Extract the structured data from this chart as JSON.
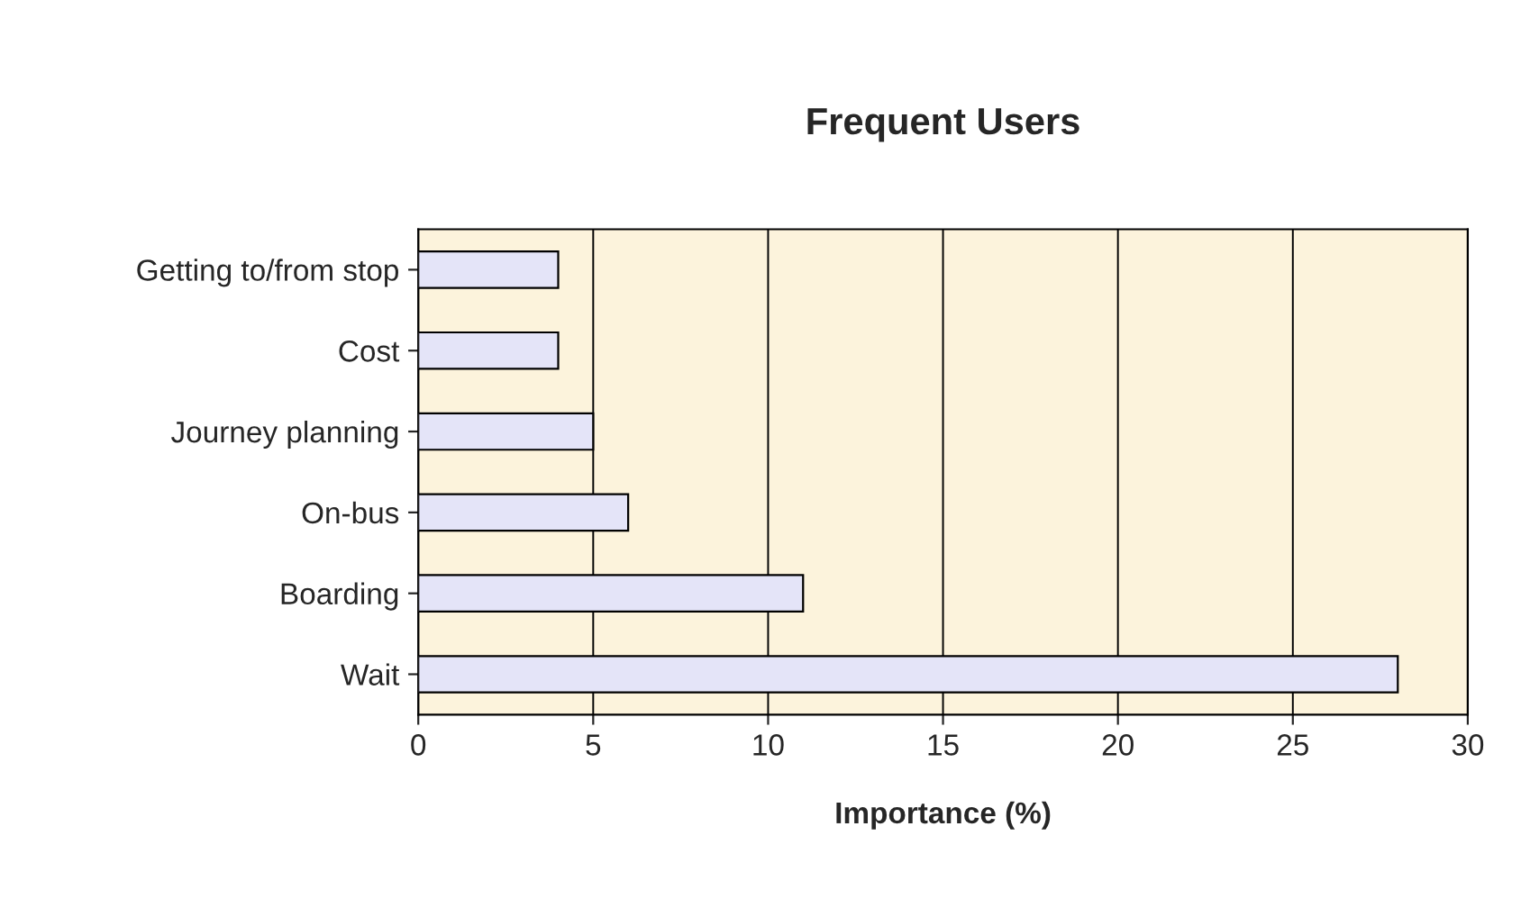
{
  "chart_data": {
    "type": "bar",
    "orientation": "horizontal",
    "title": "Frequent Users",
    "xlabel": "Importance (%)",
    "categories": [
      "Getting to/from stop",
      "Cost",
      "Journey planning",
      "On-bus",
      "Boarding",
      "Wait"
    ],
    "values": [
      4,
      4,
      5,
      6,
      11,
      28
    ],
    "color": "#e4e4f8",
    "xlim": [
      0,
      30
    ],
    "xticks": [
      0,
      5,
      10,
      15,
      20,
      25,
      30
    ],
    "grid": "x",
    "legend": false
  }
}
